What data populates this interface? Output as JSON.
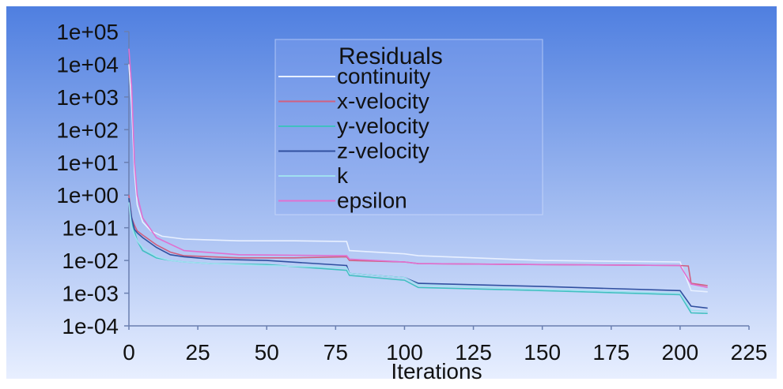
{
  "chart_data": {
    "type": "line",
    "title": "",
    "xlabel": "Iterations",
    "ylabel": "",
    "yscale": "log",
    "xlim": [
      0,
      225
    ],
    "ylim": [
      0.0001,
      100000
    ],
    "x_ticks": [
      "0",
      "25",
      "50",
      "75",
      "100",
      "125",
      "150",
      "175",
      "200",
      "225"
    ],
    "y_ticks": [
      "1e-04",
      "1e-03",
      "1e-02",
      "1e-01",
      "1e+00",
      "1e+01",
      "1e+02",
      "1e+03",
      "1e+04",
      "1e+05"
    ],
    "legend": {
      "title": "Residuals",
      "placement": "top-center"
    },
    "background": {
      "top": "#4f7fe0",
      "bottom": "#e8efff"
    },
    "series": [
      {
        "name": "continuity",
        "color": "#e8f0ff",
        "x": [
          0,
          1,
          2,
          3,
          5,
          8,
          12,
          20,
          40,
          60,
          79,
          80,
          100,
          105,
          150,
          200,
          204,
          210
        ],
        "y": [
          10000,
          500,
          5,
          0.5,
          0.15,
          0.08,
          0.055,
          0.045,
          0.04,
          0.04,
          0.038,
          0.02,
          0.016,
          0.014,
          0.01,
          0.009,
          0.0012,
          0.0011
        ]
      },
      {
        "name": "x-velocity",
        "color": "#d06080",
        "x": [
          0,
          1,
          2,
          3,
          5,
          10,
          15,
          20,
          40,
          60,
          79,
          80,
          100,
          105,
          150,
          200,
          203,
          204,
          210
        ],
        "y": [
          1,
          0.2,
          0.12,
          0.08,
          0.06,
          0.03,
          0.018,
          0.014,
          0.012,
          0.012,
          0.013,
          0.01,
          0.009,
          0.008,
          0.0075,
          0.007,
          0.0068,
          0.002,
          0.0017
        ]
      },
      {
        "name": "y-velocity",
        "color": "#40c0c0",
        "x": [
          0,
          1,
          2,
          3,
          5,
          10,
          15,
          20,
          30,
          50,
          79,
          80,
          100,
          105,
          150,
          200,
          204,
          210
        ],
        "y": [
          0.8,
          0.15,
          0.08,
          0.04,
          0.02,
          0.012,
          0.01,
          0.009,
          0.008,
          0.0075,
          0.005,
          0.0035,
          0.0025,
          0.0015,
          0.0012,
          0.0009,
          0.00025,
          0.00024
        ]
      },
      {
        "name": "z-velocity",
        "color": "#3050a0",
        "x": [
          0,
          1,
          2,
          3,
          5,
          10,
          15,
          20,
          30,
          50,
          79,
          80,
          100,
          105,
          150,
          200,
          204,
          210
        ],
        "y": [
          0.8,
          0.2,
          0.09,
          0.07,
          0.05,
          0.025,
          0.015,
          0.013,
          0.011,
          0.01,
          0.007,
          0.004,
          0.003,
          0.002,
          0.0016,
          0.0012,
          0.0004,
          0.00035
        ]
      },
      {
        "name": "k",
        "color": "#a0e0f0",
        "x": [
          0,
          1,
          2,
          3,
          5,
          10,
          15,
          20,
          30,
          50,
          79,
          80,
          100,
          105,
          150,
          200,
          204,
          210
        ],
        "y": [
          0.6,
          0.1,
          0.06,
          0.04,
          0.025,
          0.013,
          0.01,
          0.009,
          0.008,
          0.007,
          0.006,
          0.004,
          0.003,
          0.0018,
          0.0013,
          0.001,
          0.0003,
          0.00028
        ]
      },
      {
        "name": "epsilon",
        "color": "#e070d0",
        "x": [
          0,
          1,
          2,
          3,
          5,
          10,
          20,
          40,
          79,
          80,
          100,
          105,
          150,
          200,
          204,
          210
        ],
        "y": [
          30000,
          2000,
          10,
          1,
          0.2,
          0.05,
          0.02,
          0.015,
          0.014,
          0.011,
          0.009,
          0.008,
          0.0075,
          0.007,
          0.0019,
          0.0015
        ]
      }
    ]
  }
}
